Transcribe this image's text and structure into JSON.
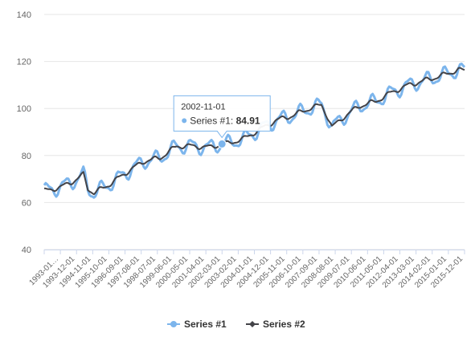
{
  "chart_data": {
    "type": "line",
    "title": "",
    "xlabel": "",
    "ylabel": "",
    "ylim": [
      40,
      140
    ],
    "yticks": [
      40,
      60,
      80,
      100,
      120,
      140
    ],
    "grid": "horizontal",
    "legend": "bottom-center",
    "x_tick_labels": [
      "1993-01…",
      "1993-12-01",
      "1994-11-01",
      "1995-10-01",
      "1996-09-01",
      "1997-08-01",
      "1998-07-01",
      "1999-06-01",
      "2000-05-01",
      "2001-04-01",
      "2002-03-01",
      "2003-02-01",
      "2004-01-01",
      "2004-12-01",
      "2005-11-01",
      "2006-10-01",
      "2007-09-01",
      "2008-08-01",
      "2009-07-01",
      "2010-06-01",
      "2011-05-01",
      "2012-04-01",
      "2013-03-01",
      "2014-02-01",
      "2015-01-01",
      "2015-12-01"
    ],
    "anchors": [
      {
        "date": "1993-01-01",
        "value": 65
      },
      {
        "date": "1993-12-01",
        "value": 66.5
      },
      {
        "date": "1994-11-01",
        "value": 70
      },
      {
        "date": "1995-03-01",
        "value": 72
      },
      {
        "date": "1995-06-01",
        "value": 66
      },
      {
        "date": "1995-10-01",
        "value": 64
      },
      {
        "date": "1996-09-01",
        "value": 68
      },
      {
        "date": "1997-08-01",
        "value": 73
      },
      {
        "date": "1998-07-01",
        "value": 77.5
      },
      {
        "date": "1999-06-01",
        "value": 79
      },
      {
        "date": "2000-05-01",
        "value": 84
      },
      {
        "date": "2001-04-01",
        "value": 84
      },
      {
        "date": "2002-03-01",
        "value": 83.5
      },
      {
        "date": "2002-11-01",
        "value": 84.91
      },
      {
        "date": "2003-02-01",
        "value": 85
      },
      {
        "date": "2004-01-01",
        "value": 87
      },
      {
        "date": "2004-12-01",
        "value": 91
      },
      {
        "date": "2005-11-01",
        "value": 95
      },
      {
        "date": "2006-10-01",
        "value": 97
      },
      {
        "date": "2007-09-01",
        "value": 100
      },
      {
        "date": "2008-05-01",
        "value": 101.5
      },
      {
        "date": "2008-08-01",
        "value": 98
      },
      {
        "date": "2008-12-01",
        "value": 92
      },
      {
        "date": "2009-07-01",
        "value": 96
      },
      {
        "date": "2010-06-01",
        "value": 101
      },
      {
        "date": "2011-05-01",
        "value": 103
      },
      {
        "date": "2012-04-01",
        "value": 107
      },
      {
        "date": "2013-03-01",
        "value": 110
      },
      {
        "date": "2014-02-01",
        "value": 112
      },
      {
        "date": "2015-01-01",
        "value": 114
      },
      {
        "date": "2015-12-01",
        "value": 116.5
      },
      {
        "date": "2016-04-01",
        "value": 116
      }
    ],
    "series": [
      {
        "name": "Series #1",
        "color": "#7cb5ec",
        "marker": "circle",
        "seasonal_amplitude": 2.8
      },
      {
        "name": "Series #2",
        "color": "#434348",
        "marker": "diamond",
        "seasonal_amplitude": 0.9
      }
    ],
    "tooltip": {
      "date": "2002-11-01",
      "series": "Series #1",
      "value": "84.91",
      "label": "Series #1: "
    }
  }
}
